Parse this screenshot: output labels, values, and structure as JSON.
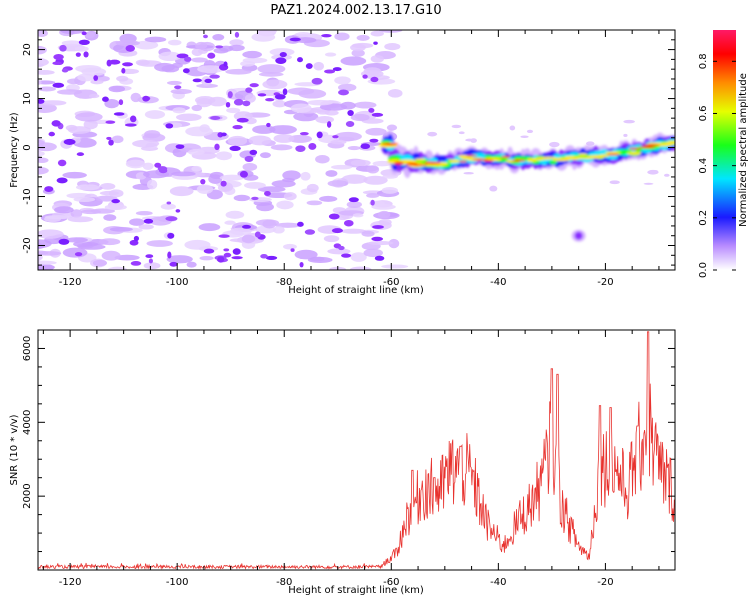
{
  "title": "PAZ1.2024.002.13.17.G10",
  "chart_data": [
    {
      "type": "heatmap",
      "title": "PAZ1.2024.002.13.17.G10",
      "xlabel": "Height of straight line (km)",
      "ylabel": "Frequency (Hz)",
      "xlim": [
        -126,
        -7
      ],
      "ylim": [
        -25,
        24
      ],
      "xticks": [
        -120,
        -100,
        -80,
        -60,
        -40,
        -20
      ],
      "yticks": [
        -20,
        -10,
        0,
        10,
        20
      ],
      "xtick_labels": [
        "-120",
        "-100",
        "-80",
        "-60",
        "-40",
        "-20"
      ],
      "ytick_labels": [
        "-20",
        "-10",
        "0",
        "10",
        "20"
      ],
      "colorbar": {
        "label": "Normalized spectral amplitude",
        "range": [
          0,
          0.92
        ],
        "ticks": [
          0.0,
          0.2,
          0.4,
          0.6,
          0.8
        ],
        "tick_labels": [
          "0.0",
          "0.2",
          "0.4",
          "0.6",
          "0.8"
        ]
      },
      "noise_region": {
        "x": [
          -126,
          -60
        ],
        "y": [
          -25,
          24
        ],
        "amplitude_max": 0.1
      },
      "signal_track": [
        {
          "x": -60,
          "y": -2.5
        },
        {
          "x": -55,
          "y": -3.0
        },
        {
          "x": -50,
          "y": -3.2
        },
        {
          "x": -45,
          "y": -2.0
        },
        {
          "x": -40,
          "y": -2.4
        },
        {
          "x": -35,
          "y": -2.6
        },
        {
          "x": -30,
          "y": -2.5
        },
        {
          "x": -25,
          "y": -1.8
        },
        {
          "x": -20,
          "y": -1.6
        },
        {
          "x": -15,
          "y": -0.8
        },
        {
          "x": -10,
          "y": 0.5
        },
        {
          "x": -7,
          "y": 0.8
        }
      ],
      "spots": [
        {
          "x": -25,
          "y": -18
        }
      ]
    },
    {
      "type": "line",
      "xlabel": "Height of straight line (km)",
      "ylabel": "SNR (10 * v/v)",
      "xlim": [
        -126,
        -7
      ],
      "ylim": [
        0,
        6500
      ],
      "xticks": [
        -120,
        -100,
        -80,
        -60,
        -40,
        -20
      ],
      "yticks": [
        2000,
        4000,
        6000
      ],
      "xtick_labels": [
        "-120",
        "-100",
        "-80",
        "-60",
        "-40",
        "-20"
      ],
      "ytick_labels": [
        "2000",
        "4000",
        "6000"
      ],
      "color": "#e8322e",
      "envelope": [
        {
          "x": -126,
          "y": 60
        },
        {
          "x": -62,
          "y": 100
        },
        {
          "x": -59,
          "y": 500
        },
        {
          "x": -57,
          "y": 1600
        },
        {
          "x": -54,
          "y": 2400
        },
        {
          "x": -51,
          "y": 2300
        },
        {
          "x": -49,
          "y": 2900
        },
        {
          "x": -47,
          "y": 3050
        },
        {
          "x": -45,
          "y": 2700
        },
        {
          "x": -42,
          "y": 1300
        },
        {
          "x": -39,
          "y": 700
        },
        {
          "x": -36,
          "y": 1500
        },
        {
          "x": -34,
          "y": 1900
        },
        {
          "x": -32,
          "y": 2500
        },
        {
          "x": -30,
          "y": 3800
        },
        {
          "x": -28,
          "y": 1800
        },
        {
          "x": -25,
          "y": 700
        },
        {
          "x": -23,
          "y": 400
        },
        {
          "x": -21,
          "y": 3100
        },
        {
          "x": -18,
          "y": 3000
        },
        {
          "x": -16,
          "y": 2300
        },
        {
          "x": -14,
          "y": 3400
        },
        {
          "x": -12,
          "y": 4300
        },
        {
          "x": -10,
          "y": 3000
        },
        {
          "x": -8,
          "y": 2500
        },
        {
          "x": -7,
          "y": 2200
        }
      ],
      "peaks": [
        {
          "x": -56,
          "y": 2700
        },
        {
          "x": -52,
          "y": 2500
        },
        {
          "x": -47,
          "y": 3350
        },
        {
          "x": -30,
          "y": 5450
        },
        {
          "x": -29,
          "y": 5300
        },
        {
          "x": -21,
          "y": 4450
        },
        {
          "x": -19,
          "y": 4400
        },
        {
          "x": -12,
          "y": 6450
        },
        {
          "x": -14,
          "y": 3900
        }
      ]
    }
  ]
}
